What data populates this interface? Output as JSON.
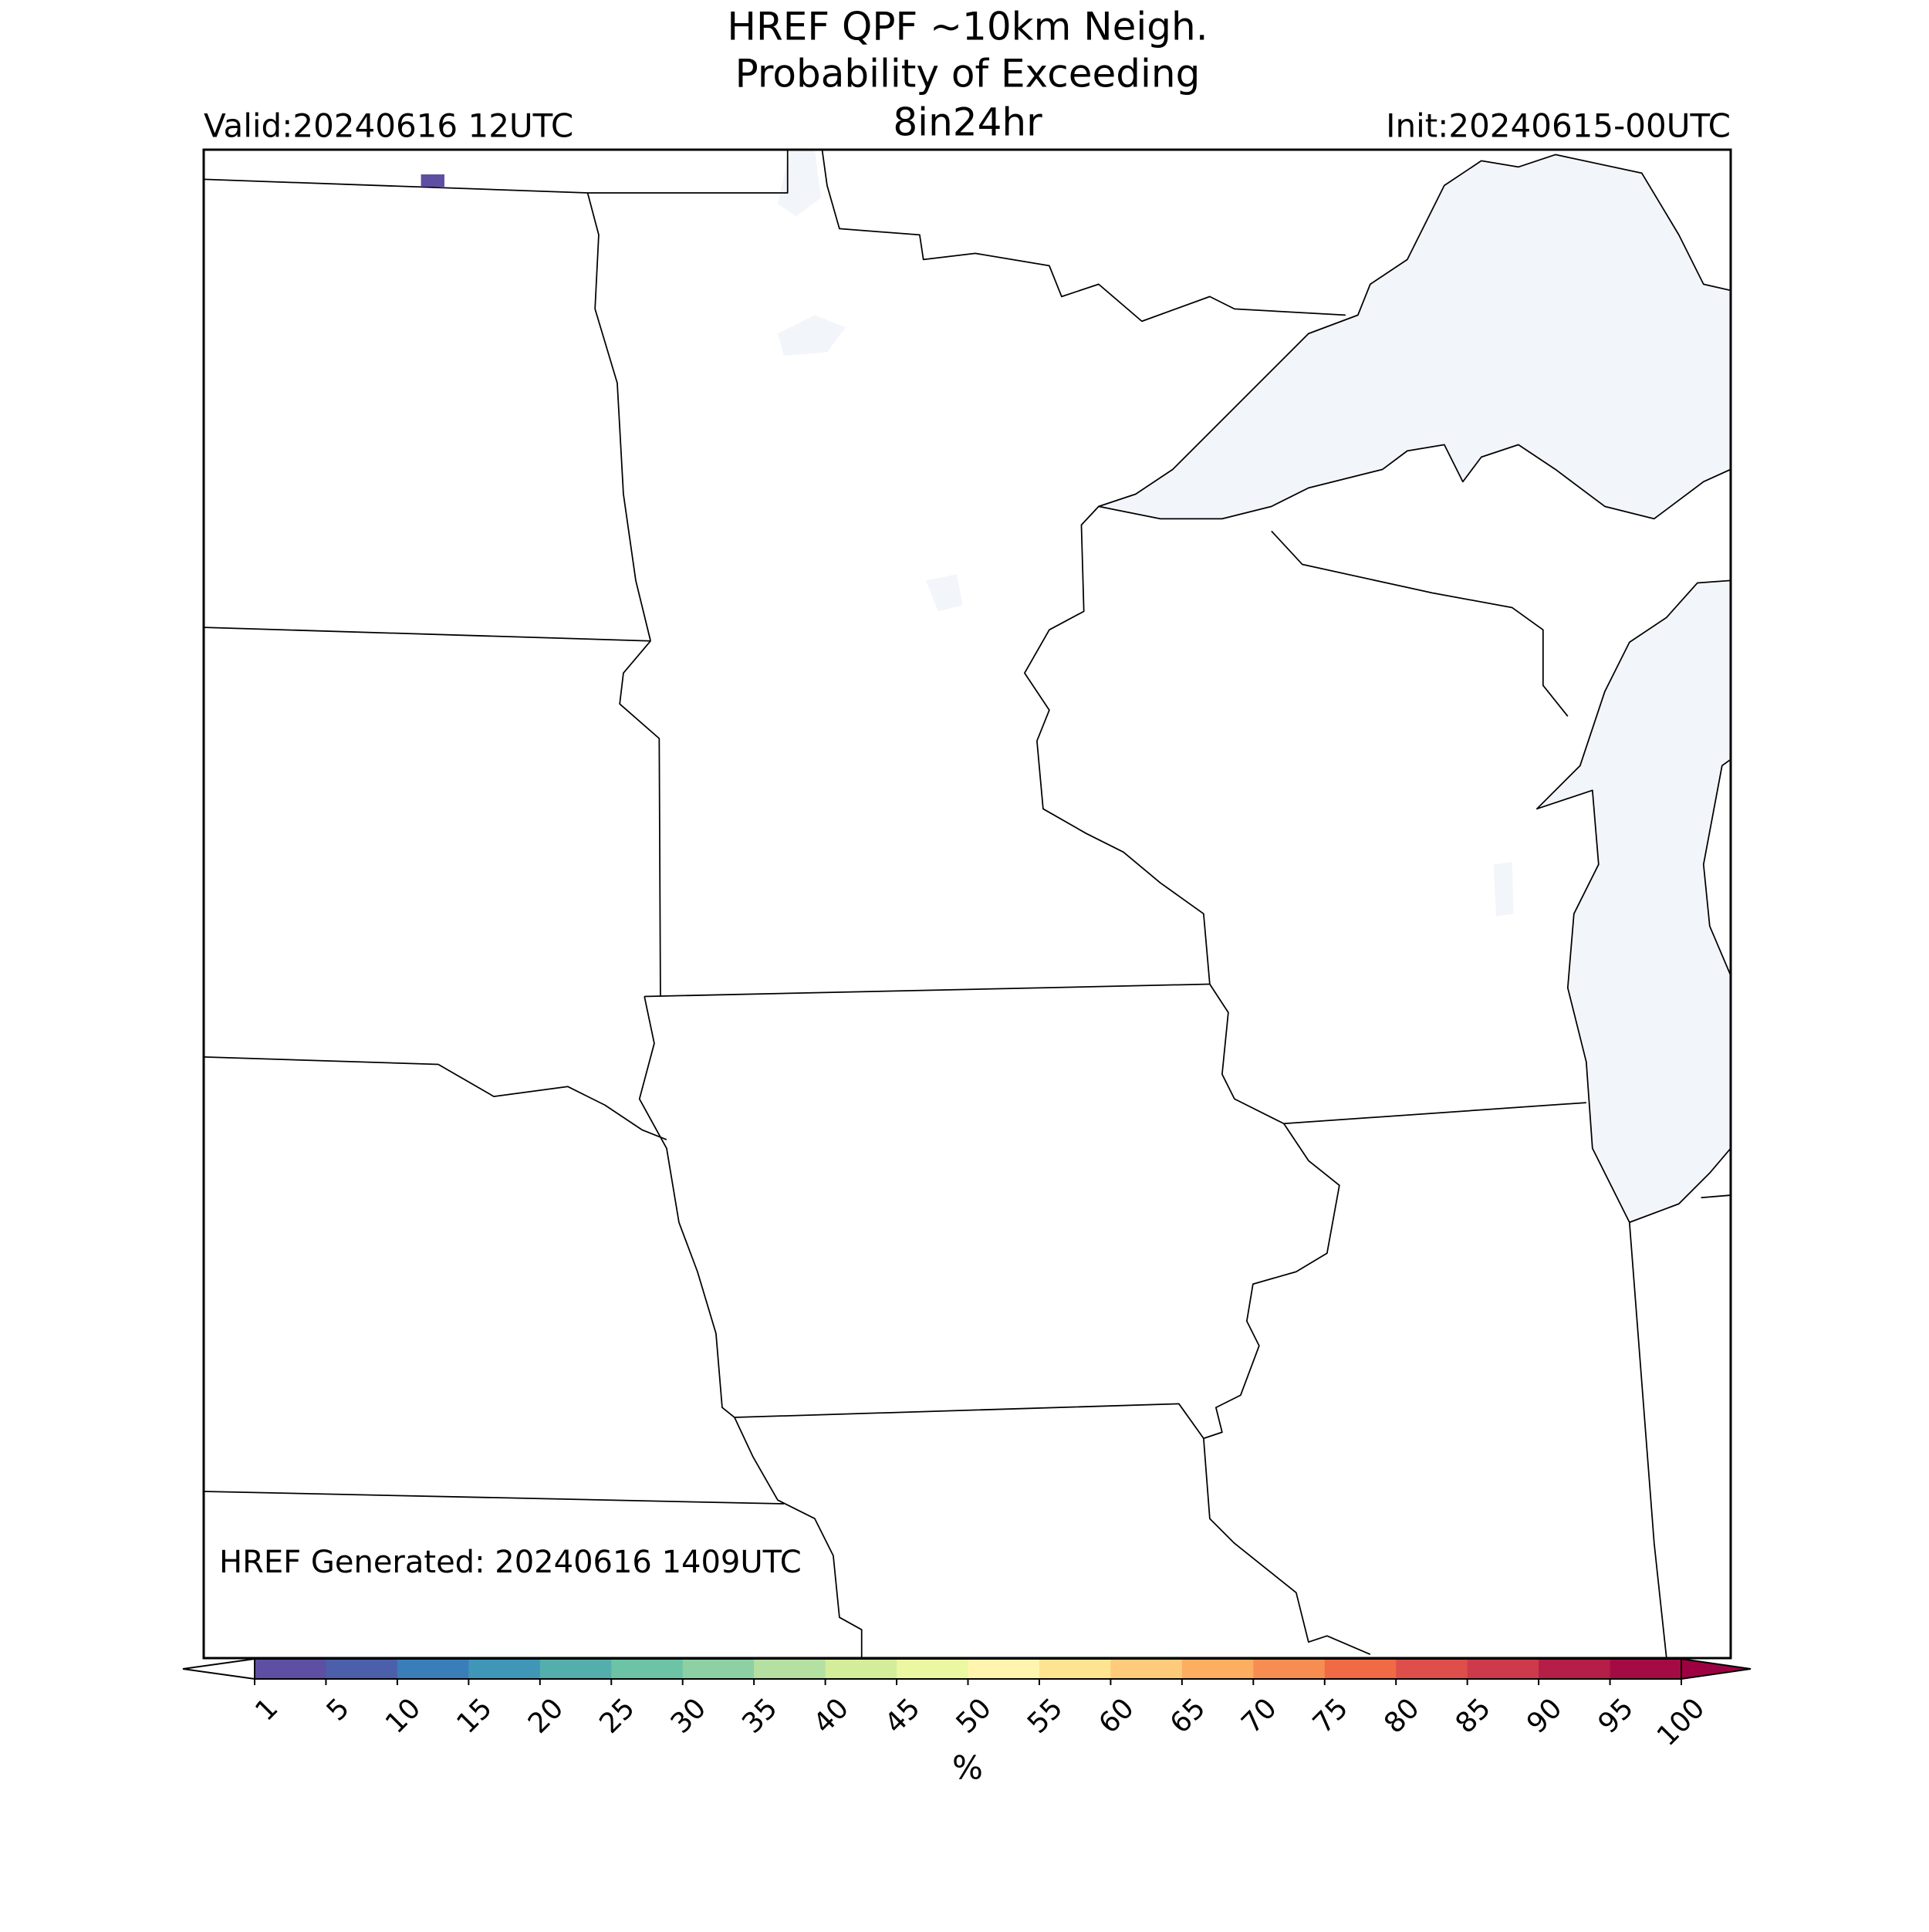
{
  "title": [
    "HREF QPF ~10km Neigh.",
    "Probability of Exceeding",
    "8in24hr"
  ],
  "valid": "Valid:20240616 12UTC",
  "init": "Init:20240615-00UTC",
  "generated": "HREF Generated: 20240616 1409UTC",
  "colorbar": {
    "ticks": [
      1,
      5,
      10,
      15,
      20,
      25,
      30,
      35,
      40,
      45,
      50,
      55,
      60,
      65,
      70,
      75,
      80,
      85,
      90,
      95,
      100
    ],
    "colors": [
      "#5e4fa2",
      "#4c5fab",
      "#3a7eb9",
      "#3f96b6",
      "#54aeac",
      "#6dc3a5",
      "#8dd0a4",
      "#b4e0a2",
      "#d4ed9b",
      "#ecf7a2",
      "#fff5ae",
      "#fee491",
      "#fecb7a",
      "#fdae61",
      "#f88d52",
      "#ef6a45",
      "#de4e4b",
      "#cd3a4c",
      "#b51e47",
      "#a40b44"
    ],
    "under_color": "#ffffff",
    "over_color": "#9e0142",
    "label": "%"
  }
}
